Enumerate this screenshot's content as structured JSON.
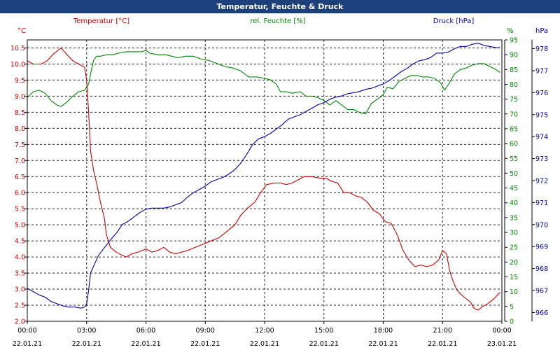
{
  "title": "Temperatur, Feuchte & Druck",
  "colors": {
    "temperature": "#cc0000",
    "humidity": "#008800",
    "pressure": "#0000aa",
    "titlebar": "#1d3f7a",
    "grid": "#000000",
    "background": "#ffffff"
  },
  "chart_data": {
    "type": "line",
    "title": "Temperatur, Feuchte & Druck",
    "x_tick_times": [
      "00:00",
      "03:00",
      "06:00",
      "09:00",
      "12:00",
      "15:00",
      "18:00",
      "21:00",
      "00:00"
    ],
    "x_tick_dates": [
      "22.01.21",
      "22.01.21",
      "22.01.21",
      "22.01.21",
      "22.01.21",
      "22.01.21",
      "22.01.21",
      "22.01.21",
      "23.01.21"
    ],
    "x_range_hours": [
      0,
      24
    ],
    "grid": true,
    "axes": [
      {
        "id": "temp",
        "side": "left",
        "label": "°C",
        "range": [
          2.0,
          10.75
        ],
        "ticks": [
          "2.0",
          "2.5",
          "3.0",
          "3.5",
          "4.0",
          "4.5",
          "5.0",
          "5.5",
          "6.0",
          "6.5",
          "7.0",
          "7.5",
          "8.0",
          "8.5",
          "9.0",
          "9.5",
          "10.0",
          "10.5"
        ]
      },
      {
        "id": "hum",
        "side": "right",
        "label": "%",
        "range": [
          0,
          95
        ],
        "ticks": [
          "0",
          "5",
          "10",
          "15",
          "20",
          "25",
          "30",
          "35",
          "40",
          "45",
          "50",
          "55",
          "60",
          "65",
          "70",
          "75",
          "80",
          "85",
          "90",
          "95"
        ]
      },
      {
        "id": "press",
        "side": "right-outer",
        "label": "hPa",
        "range": [
          965.6,
          978.4
        ],
        "ticks": [
          "966",
          "967",
          "968",
          "969",
          "970",
          "971",
          "972",
          "973",
          "974",
          "975",
          "976",
          "977",
          "978"
        ]
      }
    ],
    "series": [
      {
        "name": "Temperatur [°C]",
        "axis": "temp",
        "color": "#cc0000",
        "points": [
          [
            0,
            10.1
          ],
          [
            0.3,
            10.0
          ],
          [
            0.7,
            10.0
          ],
          [
            1.0,
            10.1
          ],
          [
            1.3,
            10.3
          ],
          [
            1.7,
            10.5
          ],
          [
            2.0,
            10.3
          ],
          [
            2.3,
            10.1
          ],
          [
            2.6,
            10.0
          ],
          [
            2.9,
            9.9
          ],
          [
            3.0,
            9.5
          ],
          [
            3.1,
            8.5
          ],
          [
            3.2,
            7.3
          ],
          [
            3.35,
            6.7
          ],
          [
            3.5,
            6.3
          ],
          [
            3.7,
            5.7
          ],
          [
            3.9,
            5.2
          ],
          [
            4.0,
            4.7
          ],
          [
            4.2,
            4.3
          ],
          [
            4.5,
            4.15
          ],
          [
            4.8,
            4.05
          ],
          [
            5.0,
            4.0
          ],
          [
            5.3,
            4.1
          ],
          [
            5.6,
            4.15
          ],
          [
            6.0,
            4.25
          ],
          [
            6.3,
            4.15
          ],
          [
            6.6,
            4.2
          ],
          [
            6.9,
            4.3
          ],
          [
            7.2,
            4.15
          ],
          [
            7.5,
            4.1
          ],
          [
            7.8,
            4.15
          ],
          [
            8.1,
            4.2
          ],
          [
            8.5,
            4.3
          ],
          [
            8.9,
            4.4
          ],
          [
            9.3,
            4.5
          ],
          [
            9.7,
            4.6
          ],
          [
            10.1,
            4.8
          ],
          [
            10.5,
            5.0
          ],
          [
            10.8,
            5.3
          ],
          [
            11.1,
            5.5
          ],
          [
            11.5,
            5.7
          ],
          [
            11.8,
            6.0
          ],
          [
            12.1,
            6.25
          ],
          [
            12.5,
            6.3
          ],
          [
            12.8,
            6.3
          ],
          [
            13.1,
            6.25
          ],
          [
            13.4,
            6.3
          ],
          [
            13.7,
            6.4
          ],
          [
            14.0,
            6.5
          ],
          [
            14.4,
            6.5
          ],
          [
            14.8,
            6.45
          ],
          [
            15.1,
            6.45
          ],
          [
            15.4,
            6.35
          ],
          [
            15.7,
            6.3
          ],
          [
            16.0,
            6.0
          ],
          [
            16.3,
            6.0
          ],
          [
            16.6,
            5.9
          ],
          [
            16.9,
            5.85
          ],
          [
            17.2,
            5.7
          ],
          [
            17.5,
            5.45
          ],
          [
            17.8,
            5.35
          ],
          [
            18.1,
            5.1
          ],
          [
            18.4,
            5.05
          ],
          [
            18.7,
            4.7
          ],
          [
            19.0,
            4.2
          ],
          [
            19.3,
            3.9
          ],
          [
            19.6,
            3.7
          ],
          [
            19.9,
            3.75
          ],
          [
            20.2,
            3.7
          ],
          [
            20.5,
            3.75
          ],
          [
            20.8,
            3.9
          ],
          [
            21.0,
            4.2
          ],
          [
            21.2,
            4.1
          ],
          [
            21.35,
            3.6
          ],
          [
            21.5,
            3.3
          ],
          [
            21.7,
            3.0
          ],
          [
            21.9,
            2.85
          ],
          [
            22.1,
            2.75
          ],
          [
            22.4,
            2.6
          ],
          [
            22.6,
            2.4
          ],
          [
            22.8,
            2.35
          ],
          [
            23.0,
            2.45
          ],
          [
            23.3,
            2.55
          ],
          [
            23.6,
            2.7
          ],
          [
            23.9,
            2.9
          ]
        ]
      },
      {
        "name": "rel. Feuchte [%]",
        "axis": "hum",
        "color": "#008800",
        "points": [
          [
            0,
            75.5
          ],
          [
            0.3,
            77.5
          ],
          [
            0.6,
            78.0
          ],
          [
            0.9,
            77.0
          ],
          [
            1.2,
            74.5
          ],
          [
            1.5,
            73.0
          ],
          [
            1.7,
            72.5
          ],
          [
            2.0,
            74.0
          ],
          [
            2.3,
            76.0
          ],
          [
            2.6,
            77.5
          ],
          [
            2.9,
            78.0
          ],
          [
            3.1,
            80.0
          ],
          [
            3.2,
            83.5
          ],
          [
            3.35,
            88.0
          ],
          [
            3.5,
            89.5
          ],
          [
            3.7,
            89.5
          ],
          [
            4.0,
            90.0
          ],
          [
            4.3,
            90.0
          ],
          [
            4.6,
            90.5
          ],
          [
            5.0,
            91.0
          ],
          [
            5.4,
            91.0
          ],
          [
            5.8,
            91.0
          ],
          [
            6.0,
            91.5
          ],
          [
            6.2,
            90.5
          ],
          [
            6.6,
            90.0
          ],
          [
            7.0,
            90.0
          ],
          [
            7.3,
            89.5
          ],
          [
            7.6,
            89.0
          ],
          [
            8.0,
            89.5
          ],
          [
            8.4,
            89.5
          ],
          [
            8.8,
            88.5
          ],
          [
            9.2,
            88.0
          ],
          [
            9.6,
            87.0
          ],
          [
            10.0,
            86.0
          ],
          [
            10.4,
            85.5
          ],
          [
            10.8,
            84.5
          ],
          [
            11.2,
            82.5
          ],
          [
            11.6,
            82.5
          ],
          [
            12.0,
            82.0
          ],
          [
            12.3,
            81.5
          ],
          [
            12.6,
            80.0
          ],
          [
            12.8,
            77.5
          ],
          [
            13.1,
            77.5
          ],
          [
            13.4,
            77.0
          ],
          [
            13.8,
            77.5
          ],
          [
            14.1,
            76.0
          ],
          [
            14.4,
            76.0
          ],
          [
            14.7,
            75.5
          ],
          [
            15.0,
            74.5
          ],
          [
            15.3,
            73.0
          ],
          [
            15.6,
            74.5
          ],
          [
            15.9,
            73.0
          ],
          [
            16.2,
            71.5
          ],
          [
            16.5,
            71.5
          ],
          [
            16.8,
            70.5
          ],
          [
            17.1,
            70.0
          ],
          [
            17.4,
            73.5
          ],
          [
            17.7,
            75.0
          ],
          [
            18.0,
            76.5
          ],
          [
            18.2,
            79.0
          ],
          [
            18.5,
            78.5
          ],
          [
            18.8,
            81.0
          ],
          [
            19.1,
            82.0
          ],
          [
            19.4,
            83.0
          ],
          [
            19.7,
            83.0
          ],
          [
            20.0,
            82.5
          ],
          [
            20.3,
            82.5
          ],
          [
            20.6,
            82.0
          ],
          [
            20.9,
            80.5
          ],
          [
            21.1,
            78.0
          ],
          [
            21.3,
            80.0
          ],
          [
            21.6,
            83.5
          ],
          [
            21.9,
            85.0
          ],
          [
            22.2,
            85.5
          ],
          [
            22.5,
            86.5
          ],
          [
            22.8,
            87.0
          ],
          [
            23.1,
            87.0
          ],
          [
            23.4,
            86.0
          ],
          [
            23.7,
            85.0
          ],
          [
            23.9,
            84.0
          ]
        ]
      },
      {
        "name": "Druck [hPa]",
        "axis": "press",
        "color": "#0000aa",
        "points": [
          [
            0,
            967.1
          ],
          [
            0.3,
            966.95
          ],
          [
            0.6,
            966.8
          ],
          [
            0.9,
            966.7
          ],
          [
            1.2,
            966.5
          ],
          [
            1.5,
            966.4
          ],
          [
            1.8,
            966.3
          ],
          [
            2.1,
            966.25
          ],
          [
            2.4,
            966.25
          ],
          [
            2.7,
            966.2
          ],
          [
            2.9,
            966.25
          ],
          [
            3.0,
            966.4
          ],
          [
            3.1,
            967.0
          ],
          [
            3.2,
            967.8
          ],
          [
            3.4,
            968.2
          ],
          [
            3.6,
            968.6
          ],
          [
            3.9,
            968.95
          ],
          [
            4.2,
            969.3
          ],
          [
            4.5,
            969.6
          ],
          [
            4.8,
            970.0
          ],
          [
            5.1,
            970.15
          ],
          [
            5.4,
            970.35
          ],
          [
            5.7,
            970.55
          ],
          [
            6.0,
            970.7
          ],
          [
            6.3,
            970.75
          ],
          [
            6.6,
            970.75
          ],
          [
            6.9,
            970.75
          ],
          [
            7.2,
            970.8
          ],
          [
            7.5,
            970.9
          ],
          [
            7.8,
            971.0
          ],
          [
            8.1,
            971.25
          ],
          [
            8.4,
            971.45
          ],
          [
            8.7,
            971.6
          ],
          [
            9.0,
            971.75
          ],
          [
            9.3,
            971.95
          ],
          [
            9.6,
            972.05
          ],
          [
            9.9,
            972.15
          ],
          [
            10.2,
            972.3
          ],
          [
            10.5,
            972.5
          ],
          [
            10.8,
            972.8
          ],
          [
            11.1,
            973.2
          ],
          [
            11.4,
            973.65
          ],
          [
            11.7,
            973.9
          ],
          [
            12.0,
            974.0
          ],
          [
            12.3,
            974.15
          ],
          [
            12.6,
            974.35
          ],
          [
            12.9,
            974.55
          ],
          [
            13.2,
            974.8
          ],
          [
            13.5,
            974.9
          ],
          [
            13.8,
            975.0
          ],
          [
            14.1,
            975.15
          ],
          [
            14.4,
            975.3
          ],
          [
            14.7,
            975.45
          ],
          [
            15.0,
            975.55
          ],
          [
            15.3,
            975.7
          ],
          [
            15.6,
            975.8
          ],
          [
            15.9,
            975.85
          ],
          [
            16.2,
            975.95
          ],
          [
            16.5,
            976.0
          ],
          [
            16.8,
            976.05
          ],
          [
            17.1,
            976.15
          ],
          [
            17.4,
            976.2
          ],
          [
            17.7,
            976.3
          ],
          [
            18.0,
            976.4
          ],
          [
            18.3,
            976.55
          ],
          [
            18.6,
            976.75
          ],
          [
            18.9,
            976.95
          ],
          [
            19.2,
            977.1
          ],
          [
            19.5,
            977.3
          ],
          [
            19.8,
            977.45
          ],
          [
            20.1,
            977.5
          ],
          [
            20.4,
            977.6
          ],
          [
            20.7,
            977.8
          ],
          [
            21.0,
            977.8
          ],
          [
            21.3,
            977.85
          ],
          [
            21.6,
            978.0
          ],
          [
            21.9,
            978.1
          ],
          [
            22.2,
            978.1
          ],
          [
            22.5,
            978.2
          ],
          [
            22.8,
            978.25
          ],
          [
            23.1,
            978.15
          ],
          [
            23.4,
            978.1
          ],
          [
            23.7,
            978.05
          ],
          [
            23.9,
            978.05
          ]
        ]
      }
    ]
  }
}
